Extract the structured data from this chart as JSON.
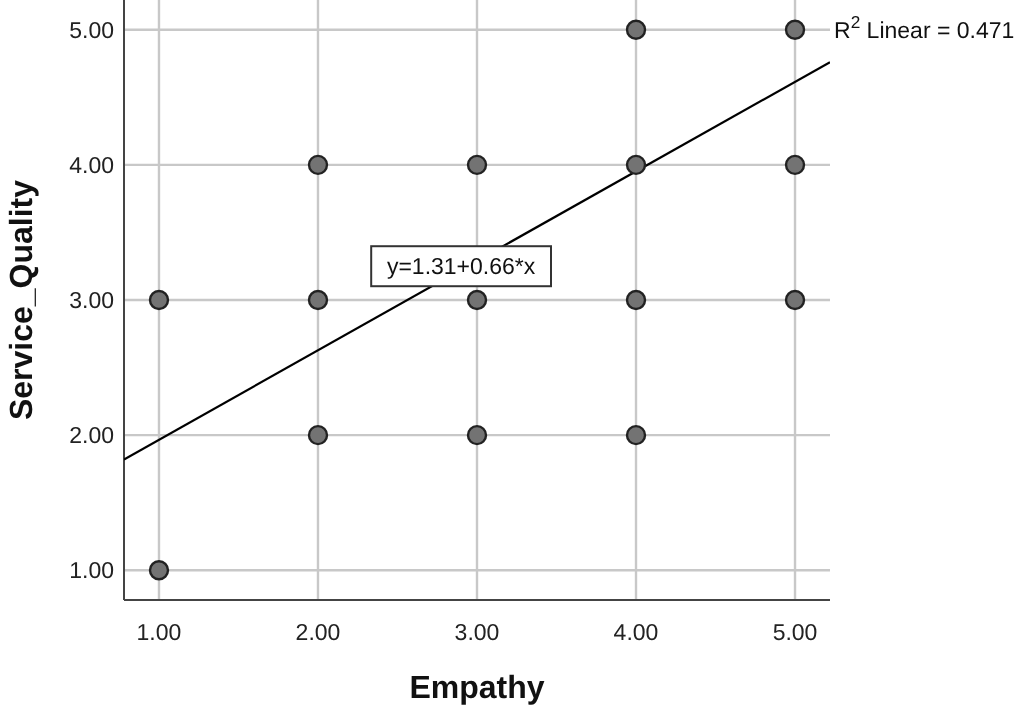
{
  "chart_data": {
    "type": "scatter",
    "xlabel": "Empathy",
    "ylabel": "Service_Quality",
    "xlim": [
      0.78,
      5.22
    ],
    "ylim": [
      0.78,
      5.22
    ],
    "xticks": [
      {
        "value": 1,
        "label": "1.00"
      },
      {
        "value": 2,
        "label": "2.00"
      },
      {
        "value": 3,
        "label": "3.00"
      },
      {
        "value": 4,
        "label": "4.00"
      },
      {
        "value": 5,
        "label": "5.00"
      }
    ],
    "yticks": [
      {
        "value": 1,
        "label": "1.00"
      },
      {
        "value": 2,
        "label": "2.00"
      },
      {
        "value": 3,
        "label": "3.00"
      },
      {
        "value": 4,
        "label": "4.00"
      },
      {
        "value": 5,
        "label": "5.00"
      }
    ],
    "grid": true,
    "marker": "circle",
    "series": [
      {
        "color": "#737373",
        "x": [
          1,
          1,
          2,
          2,
          2,
          3,
          3,
          3,
          4,
          4,
          4,
          4,
          5,
          5,
          5
        ],
        "values": [
          1,
          3,
          2,
          3,
          4,
          2,
          3,
          4,
          2,
          3,
          4,
          5,
          3,
          4,
          5
        ]
      },
      {
        "type": "line",
        "color": "#000000",
        "x": [
          0.78,
          5.22
        ],
        "values": [
          1.82,
          4.76
        ],
        "line_style": "solid",
        "marker": "none"
      }
    ],
    "annotations": [
      {
        "text": "y=1.31+0.66*x",
        "x": 2.9,
        "y": 3.25
      },
      "R$^{2}$ Linear = 0.471"
    ]
  }
}
